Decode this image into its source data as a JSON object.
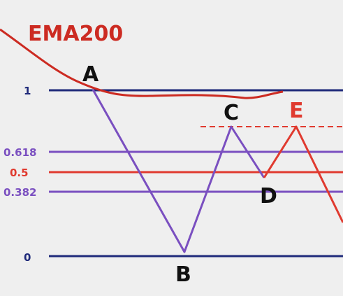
{
  "title": "EMA200",
  "levels": {
    "one": "1",
    "fib618": "0.618",
    "fib50": "0.5",
    "fib382": "0.382",
    "zero": "0"
  },
  "points": {
    "a": "A",
    "b": "B",
    "c": "C",
    "d": "D",
    "e": "E"
  },
  "colors": {
    "navy": "#1f2a7a",
    "purple": "#7a4fc0",
    "red": "#e03a2f",
    "ema": "#cc2b22",
    "background": "#efefef"
  }
}
